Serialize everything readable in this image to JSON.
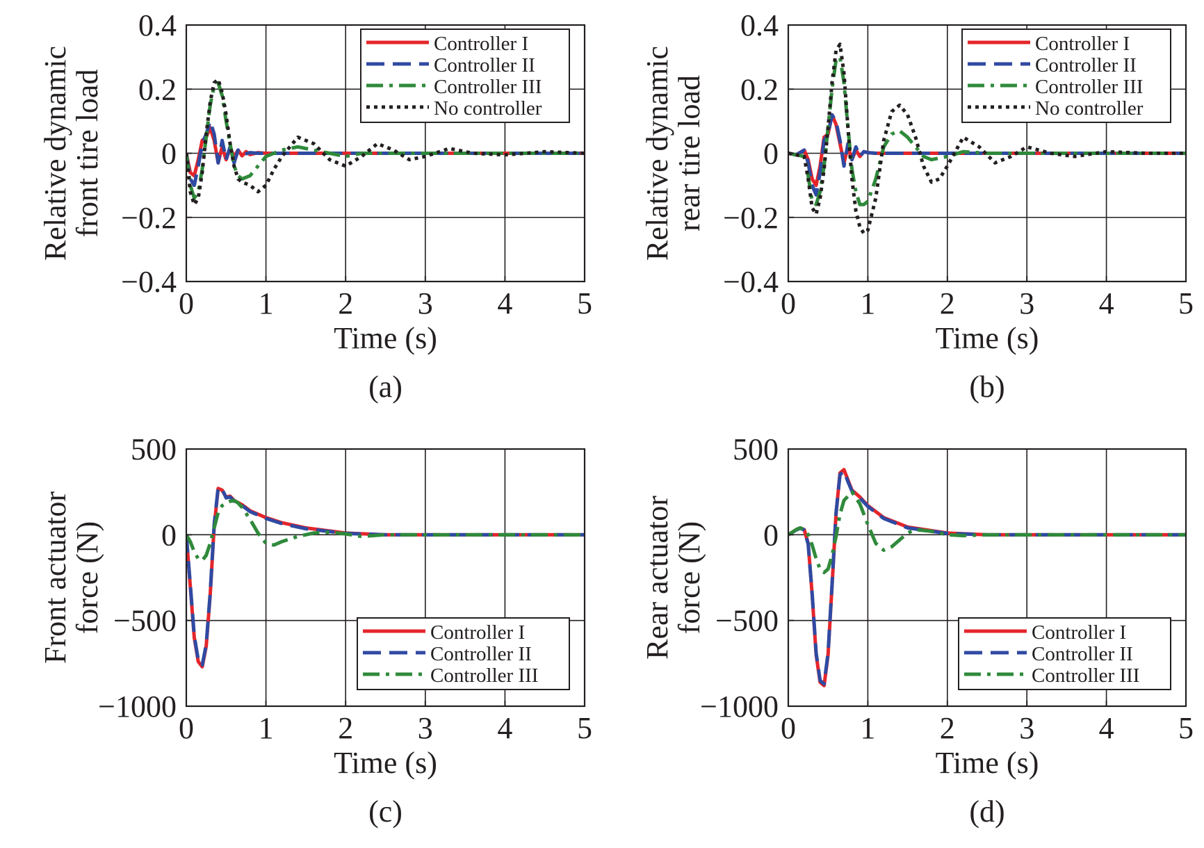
{
  "colors": {
    "controller_1": "#e4262b",
    "controller_2": "#2f4aa2",
    "controller_3": "#2f8a3b",
    "no_controller": "#231f20",
    "axis": "#231f20",
    "grid": "#231f20"
  },
  "chart_data": [
    {
      "type": "line",
      "caption": "(a)",
      "xlabel": "Time (s)",
      "ylabel_lines": [
        "Relative dynamic",
        "front tire load"
      ],
      "xlim": [
        0,
        5
      ],
      "ylim": [
        -0.4,
        0.4
      ],
      "xticks": [
        0,
        1,
        2,
        3,
        4,
        5
      ],
      "xtick_labels": [
        "0",
        "1",
        "2",
        "3",
        "4",
        "5"
      ],
      "yticks": [
        -0.4,
        -0.2,
        0,
        0.2,
        0.4
      ],
      "ytick_labels": [
        "−0.4",
        "−0.2",
        "0",
        "0.2",
        "0.4"
      ],
      "grid": true,
      "legend_position": "top-right",
      "series": [
        {
          "name": "Controller I",
          "style": "solid",
          "color_key": "controller_1",
          "x": [
            0,
            0.05,
            0.1,
            0.15,
            0.2,
            0.25,
            0.3,
            0.35,
            0.4,
            0.45,
            0.5,
            0.55,
            0.6,
            0.65,
            0.7,
            0.75,
            0.8,
            0.9,
            1.0,
            1.2,
            5
          ],
          "y": [
            0,
            -0.06,
            -0.07,
            -0.02,
            0.04,
            0.05,
            0.08,
            0.04,
            -0.03,
            0.02,
            -0.02,
            0.015,
            -0.01,
            0.01,
            -0.008,
            0.005,
            -0.004,
            0.002,
            0,
            0,
            0
          ]
        },
        {
          "name": "Controller II",
          "style": "dashed",
          "color_key": "controller_2",
          "x": [
            0,
            0.05,
            0.1,
            0.15,
            0.2,
            0.25,
            0.3,
            0.35,
            0.4,
            0.45,
            0.5,
            0.55,
            0.6,
            0.65,
            0.7,
            0.8,
            0.9,
            1.0,
            1.2,
            5
          ],
          "y": [
            0,
            -0.08,
            -0.1,
            -0.04,
            0.03,
            0.06,
            0.1,
            0.06,
            -0.03,
            0.04,
            -0.02,
            0.02,
            -0.03,
            0.01,
            -0.005,
            0.002,
            0,
            0,
            0,
            0
          ]
        },
        {
          "name": "Controller III",
          "style": "dashdot",
          "color_key": "controller_3",
          "x": [
            0,
            0.05,
            0.1,
            0.15,
            0.2,
            0.25,
            0.3,
            0.35,
            0.4,
            0.45,
            0.5,
            0.55,
            0.6,
            0.65,
            0.7,
            0.8,
            0.9,
            1.0,
            1.2,
            1.4,
            1.6,
            1.8,
            2.0,
            2.2,
            2.5,
            3.0,
            5
          ],
          "y": [
            0,
            -0.1,
            -0.14,
            -0.12,
            -0.05,
            0.05,
            0.15,
            0.21,
            0.22,
            0.18,
            0.1,
            0.03,
            -0.04,
            -0.07,
            -0.08,
            -0.07,
            -0.04,
            -0.01,
            0.01,
            0.02,
            0.01,
            0,
            -0.01,
            0,
            0,
            0,
            0
          ]
        },
        {
          "name": "No controller",
          "style": "dotted",
          "color_key": "no_controller",
          "x": [
            0,
            0.05,
            0.1,
            0.15,
            0.2,
            0.25,
            0.3,
            0.35,
            0.4,
            0.45,
            0.5,
            0.55,
            0.6,
            0.65,
            0.7,
            0.8,
            0.9,
            1.0,
            1.1,
            1.2,
            1.4,
            1.6,
            1.8,
            2.0,
            2.2,
            2.4,
            2.6,
            2.8,
            3.0,
            3.3,
            3.6,
            4.0,
            4.5,
            5
          ],
          "y": [
            0,
            -0.12,
            -0.16,
            -0.14,
            -0.06,
            0.06,
            0.16,
            0.22,
            0.23,
            0.19,
            0.12,
            0.03,
            -0.04,
            -0.08,
            -0.09,
            -0.1,
            -0.12,
            -0.1,
            -0.05,
            -0.01,
            0.05,
            0.03,
            -0.02,
            -0.04,
            -0.01,
            0.03,
            0.01,
            -0.02,
            -0.01,
            0.015,
            0,
            -0.005,
            0.005,
            0
          ]
        }
      ]
    },
    {
      "type": "line",
      "caption": "(b)",
      "xlabel": "Time (s)",
      "ylabel_lines": [
        "Relative dynamic",
        "rear tire load"
      ],
      "xlim": [
        0,
        5
      ],
      "ylim": [
        -0.4,
        0.4
      ],
      "xticks": [
        0,
        1,
        2,
        3,
        4,
        5
      ],
      "xtick_labels": [
        "0",
        "1",
        "2",
        "3",
        "4",
        "5"
      ],
      "yticks": [
        -0.4,
        -0.2,
        0,
        0.2,
        0.4
      ],
      "ytick_labels": [
        "−0.4",
        "−0.2",
        "0",
        "0.2",
        "0.4"
      ],
      "grid": true,
      "legend_position": "top-right",
      "series": [
        {
          "name": "Controller I",
          "style": "solid",
          "color_key": "controller_1",
          "x": [
            0,
            0.1,
            0.2,
            0.25,
            0.3,
            0.35,
            0.4,
            0.45,
            0.5,
            0.55,
            0.6,
            0.65,
            0.7,
            0.75,
            0.8,
            0.85,
            0.9,
            0.95,
            1.0,
            1.1,
            1.2,
            5
          ],
          "y": [
            0,
            -0.005,
            0.01,
            -0.02,
            -0.08,
            -0.1,
            -0.04,
            0.05,
            0.06,
            0.12,
            0.09,
            0.03,
            -0.03,
            0.02,
            -0.02,
            0.01,
            -0.01,
            0.005,
            0.002,
            0,
            0,
            0
          ]
        },
        {
          "name": "Controller II",
          "style": "dashed",
          "color_key": "controller_2",
          "x": [
            0,
            0.1,
            0.2,
            0.25,
            0.3,
            0.35,
            0.4,
            0.45,
            0.5,
            0.55,
            0.6,
            0.65,
            0.7,
            0.75,
            0.8,
            0.85,
            0.9,
            0.95,
            1.0,
            1.1,
            1.2,
            5
          ],
          "y": [
            0,
            -0.005,
            0.01,
            -0.03,
            -0.1,
            -0.13,
            -0.06,
            0.04,
            0.06,
            0.12,
            0.1,
            0.04,
            -0.04,
            0.03,
            -0.02,
            0.02,
            -0.01,
            0.005,
            0.002,
            0,
            0,
            0
          ]
        },
        {
          "name": "Controller III",
          "style": "dashdot",
          "color_key": "controller_3",
          "x": [
            0,
            0.2,
            0.25,
            0.3,
            0.35,
            0.4,
            0.45,
            0.5,
            0.55,
            0.6,
            0.65,
            0.7,
            0.75,
            0.8,
            0.85,
            0.9,
            0.95,
            1.0,
            1.1,
            1.2,
            1.3,
            1.4,
            1.5,
            1.6,
            1.7,
            1.8,
            2.0,
            2.2,
            2.5,
            3.0,
            5
          ],
          "y": [
            0,
            -0.01,
            -0.07,
            -0.15,
            -0.16,
            -0.12,
            -0.04,
            0.08,
            0.2,
            0.29,
            0.3,
            0.22,
            0.08,
            -0.05,
            -0.12,
            -0.16,
            -0.16,
            -0.15,
            -0.08,
            0.02,
            0.06,
            0.07,
            0.05,
            0.02,
            -0.01,
            -0.02,
            -0.01,
            0.005,
            0,
            0,
            0
          ]
        },
        {
          "name": "No controller",
          "style": "dotted",
          "color_key": "no_controller",
          "x": [
            0,
            0.2,
            0.25,
            0.3,
            0.35,
            0.4,
            0.45,
            0.5,
            0.55,
            0.6,
            0.65,
            0.7,
            0.75,
            0.8,
            0.85,
            0.9,
            0.95,
            1.0,
            1.1,
            1.2,
            1.3,
            1.4,
            1.5,
            1.6,
            1.7,
            1.8,
            1.9,
            2.0,
            2.2,
            2.4,
            2.6,
            2.8,
            3.0,
            3.3,
            3.6,
            4.0,
            4.5,
            5
          ],
          "y": [
            0,
            -0.01,
            -0.08,
            -0.17,
            -0.19,
            -0.14,
            -0.05,
            0.08,
            0.22,
            0.32,
            0.34,
            0.25,
            0.08,
            -0.08,
            -0.18,
            -0.23,
            -0.25,
            -0.24,
            -0.14,
            0.04,
            0.13,
            0.15,
            0.12,
            0.05,
            -0.04,
            -0.09,
            -0.08,
            -0.04,
            0.05,
            0.02,
            -0.03,
            -0.01,
            0.02,
            0,
            -0.01,
            0.005,
            0,
            0
          ]
        }
      ]
    },
    {
      "type": "line",
      "caption": "(c)",
      "xlabel": "Time (s)",
      "ylabel_lines": [
        "Front actuator",
        "force (N)"
      ],
      "xlim": [
        0,
        5
      ],
      "ylim": [
        -1000,
        500
      ],
      "xticks": [
        0,
        1,
        2,
        3,
        4,
        5
      ],
      "xtick_labels": [
        "0",
        "1",
        "2",
        "3",
        "4",
        "5"
      ],
      "yticks": [
        -1000,
        -500,
        0,
        500
      ],
      "ytick_labels": [
        "−1000",
        "−500",
        "0",
        "500"
      ],
      "grid": true,
      "legend_position": "lower-right",
      "series": [
        {
          "name": "Controller I",
          "style": "solid",
          "color_key": "controller_1",
          "x": [
            0,
            0.05,
            0.1,
            0.15,
            0.2,
            0.25,
            0.3,
            0.35,
            0.4,
            0.45,
            0.5,
            0.55,
            0.6,
            0.7,
            0.8,
            1.0,
            1.2,
            1.5,
            2.0,
            2.5,
            3.0,
            5
          ],
          "y": [
            0,
            -300,
            -600,
            -740,
            -770,
            -650,
            -350,
            50,
            270,
            260,
            220,
            225,
            200,
            175,
            140,
            100,
            70,
            40,
            10,
            0,
            0,
            0
          ]
        },
        {
          "name": "Controller II",
          "style": "dashed",
          "color_key": "controller_2",
          "x": [
            0,
            0.05,
            0.1,
            0.15,
            0.2,
            0.25,
            0.3,
            0.35,
            0.4,
            0.45,
            0.5,
            0.55,
            0.6,
            0.7,
            0.8,
            1.0,
            1.2,
            1.5,
            2.0,
            2.5,
            3.0,
            5
          ],
          "y": [
            0,
            -290,
            -590,
            -730,
            -760,
            -640,
            -340,
            60,
            275,
            265,
            215,
            220,
            195,
            170,
            135,
            95,
            65,
            35,
            8,
            0,
            0,
            0
          ]
        },
        {
          "name": "Controller III",
          "style": "dashdot",
          "color_key": "controller_3",
          "x": [
            0,
            0.05,
            0.1,
            0.15,
            0.2,
            0.25,
            0.3,
            0.35,
            0.4,
            0.45,
            0.5,
            0.55,
            0.6,
            0.65,
            0.7,
            0.8,
            0.9,
            1.0,
            1.1,
            1.2,
            1.4,
            1.6,
            1.8,
            2.0,
            2.2,
            2.5,
            3.0,
            5
          ],
          "y": [
            0,
            -40,
            -100,
            -140,
            -150,
            -120,
            -50,
            40,
            130,
            170,
            185,
            195,
            200,
            185,
            160,
            90,
            10,
            -50,
            -60,
            -40,
            -10,
            10,
            15,
            5,
            -10,
            0,
            0,
            0
          ]
        }
      ]
    },
    {
      "type": "line",
      "caption": "(d)",
      "xlabel": "Time (s)",
      "ylabel_lines": [
        "Rear actuator",
        "force (N)"
      ],
      "xlim": [
        0,
        5
      ],
      "ylim": [
        -1000,
        500
      ],
      "xticks": [
        0,
        1,
        2,
        3,
        4,
        5
      ],
      "xtick_labels": [
        "0",
        "1",
        "2",
        "3",
        "4",
        "5"
      ],
      "yticks": [
        -1000,
        -500,
        0,
        500
      ],
      "ytick_labels": [
        "−1000",
        "−500",
        "0",
        "500"
      ],
      "grid": true,
      "legend_position": "lower-right",
      "series": [
        {
          "name": "Controller I",
          "style": "solid",
          "color_key": "controller_1",
          "x": [
            0,
            0.1,
            0.15,
            0.2,
            0.25,
            0.3,
            0.35,
            0.4,
            0.45,
            0.5,
            0.55,
            0.6,
            0.65,
            0.7,
            0.75,
            0.8,
            0.9,
            1.0,
            1.2,
            1.5,
            2.0,
            2.5,
            5
          ],
          "y": [
            0,
            30,
            40,
            30,
            -50,
            -350,
            -700,
            -860,
            -880,
            -700,
            -300,
            120,
            360,
            380,
            320,
            260,
            220,
            170,
            100,
            45,
            10,
            0,
            0
          ]
        },
        {
          "name": "Controller II",
          "style": "dashed",
          "color_key": "controller_2",
          "x": [
            0,
            0.1,
            0.15,
            0.2,
            0.25,
            0.3,
            0.35,
            0.4,
            0.45,
            0.5,
            0.55,
            0.6,
            0.65,
            0.7,
            0.75,
            0.8,
            0.9,
            1.0,
            1.2,
            1.5,
            2.0,
            2.5,
            5
          ],
          "y": [
            0,
            28,
            38,
            28,
            -55,
            -345,
            -690,
            -850,
            -870,
            -690,
            -290,
            125,
            350,
            370,
            310,
            255,
            215,
            165,
            95,
            40,
            8,
            0,
            0
          ]
        },
        {
          "name": "Controller III",
          "style": "dashdot",
          "color_key": "controller_3",
          "x": [
            0,
            0.1,
            0.15,
            0.2,
            0.25,
            0.3,
            0.35,
            0.4,
            0.45,
            0.5,
            0.55,
            0.6,
            0.65,
            0.7,
            0.8,
            0.9,
            1.0,
            1.1,
            1.2,
            1.3,
            1.4,
            1.5,
            1.6,
            1.8,
            2.0,
            2.2,
            2.5,
            3.0,
            5
          ],
          "y": [
            0,
            30,
            40,
            30,
            0,
            -60,
            -140,
            -200,
            -220,
            -200,
            -120,
            -10,
            120,
            200,
            250,
            180,
            60,
            -50,
            -90,
            -70,
            -30,
            10,
            30,
            20,
            0,
            -5,
            0,
            0,
            0
          ]
        }
      ]
    }
  ]
}
